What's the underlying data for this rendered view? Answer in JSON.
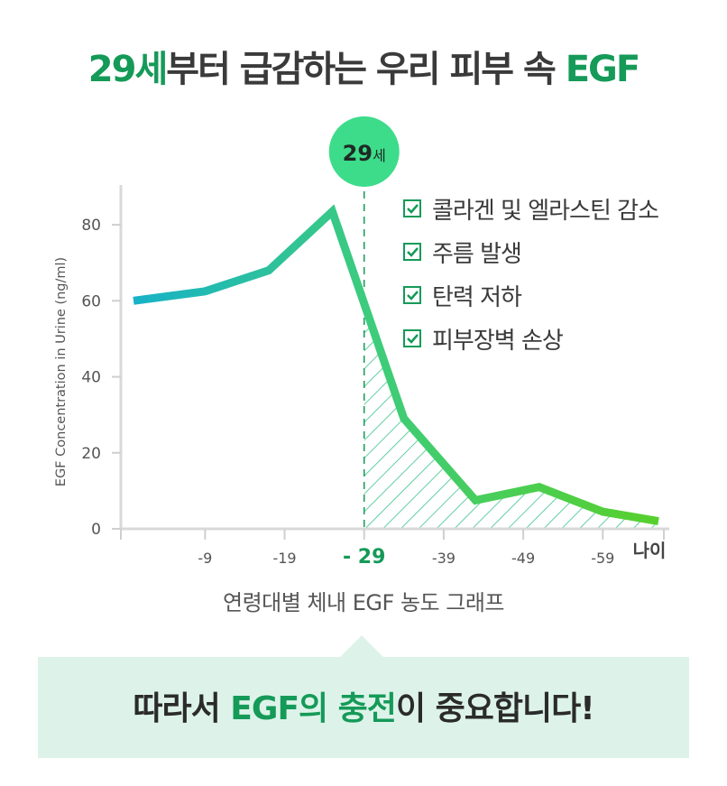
{
  "headline": {
    "age": "29세",
    "middle": "부터 급감하는 우리 피부 속 ",
    "egf": "EGF"
  },
  "marker_label": {
    "number": "29",
    "unit": "세"
  },
  "legend": [
    "콜라겐 및 엘라스틴 감소",
    "주름 발생",
    "탄력 저하",
    "피부장벽 손상"
  ],
  "caption": "연령대별 체내 EGF 농도 그래프",
  "bottom": {
    "pre": "따라서 ",
    "egf": "EGF의 충전",
    "post": "이 중요합니다!"
  },
  "colors": {
    "accent": "#159a58",
    "line_start": "#17b2c8",
    "line_end": "#57d02c",
    "highlight_circle": "#3ddc8a",
    "box_bg": "#ddf3ea"
  },
  "chart_data": {
    "type": "line",
    "ylabel": "EGF Concentration in Urine (ng/ml)",
    "xlabel_end": "나이",
    "ylim": [
      0,
      90
    ],
    "y_ticks": [
      0,
      20,
      40,
      60,
      80
    ],
    "x_ticks": [
      {
        "label": "-9",
        "age": 9
      },
      {
        "label": "-19",
        "age": 19
      },
      {
        "label": "- 29",
        "age": 29,
        "highlight": true
      },
      {
        "label": "-39",
        "age": 39
      },
      {
        "label": "-49",
        "age": 49
      },
      {
        "label": "-59",
        "age": 59
      }
    ],
    "series": [
      {
        "x": [
          0,
          9,
          17,
          25,
          34,
          43,
          51,
          59,
          66
        ],
        "y": [
          60,
          62.5,
          68,
          83.5,
          29,
          7.5,
          11,
          4.5,
          2
        ]
      }
    ],
    "highlight_age": 29
  }
}
